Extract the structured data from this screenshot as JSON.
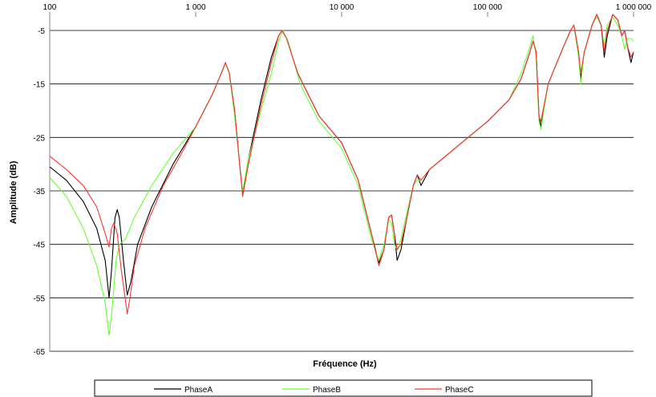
{
  "chart_data": {
    "type": "line",
    "xlabel": "Fréquence (Hz)",
    "ylabel": "Amplitude (dB)",
    "xscale": "log",
    "xlim": [
      100,
      1000000
    ],
    "ylim": [
      -65,
      -2
    ],
    "x_ticks": [
      100,
      1000,
      10000,
      100000,
      1000000
    ],
    "x_tick_labels": [
      "100",
      "1 000",
      "10 000",
      "100 000",
      "1 000 000"
    ],
    "y_ticks": [
      -5,
      -15,
      -25,
      -35,
      -45,
      -55,
      -65
    ],
    "y_tick_labels": [
      "-5",
      "-15",
      "-25",
      "-35",
      "-45",
      "-55",
      "-65"
    ],
    "grid": "horizontal",
    "legend_position": "bottom",
    "series": [
      {
        "name": "PhaseA",
        "color": "#000000",
        "points": [
          [
            100,
            -30.5
          ],
          [
            130,
            -33
          ],
          [
            170,
            -37
          ],
          [
            210,
            -42
          ],
          [
            240,
            -48
          ],
          [
            255,
            -55
          ],
          [
            265,
            -50
          ],
          [
            280,
            -40
          ],
          [
            290,
            -38.5
          ],
          [
            300,
            -40
          ],
          [
            320,
            -48
          ],
          [
            340,
            -54.5
          ],
          [
            360,
            -52
          ],
          [
            400,
            -45
          ],
          [
            500,
            -38
          ],
          [
            700,
            -30
          ],
          [
            1000,
            -23
          ],
          [
            1300,
            -17
          ],
          [
            1500,
            -13
          ],
          [
            1600,
            -11
          ],
          [
            1700,
            -13
          ],
          [
            1850,
            -20
          ],
          [
            2000,
            -30
          ],
          [
            2100,
            -35.5
          ],
          [
            2300,
            -29
          ],
          [
            2800,
            -18
          ],
          [
            3300,
            -10
          ],
          [
            3700,
            -6
          ],
          [
            3900,
            -5
          ],
          [
            4200,
            -6.5
          ],
          [
            5000,
            -13
          ],
          [
            7000,
            -21
          ],
          [
            10000,
            -26
          ],
          [
            13000,
            -33
          ],
          [
            16000,
            -43
          ],
          [
            18000,
            -48.5
          ],
          [
            19500,
            -46
          ],
          [
            21000,
            -40
          ],
          [
            22000,
            -39.5
          ],
          [
            23000,
            -43
          ],
          [
            24000,
            -48
          ],
          [
            25500,
            -46
          ],
          [
            28000,
            -40
          ],
          [
            31000,
            -34
          ],
          [
            33000,
            -32
          ],
          [
            35000,
            -34
          ],
          [
            40000,
            -31
          ],
          [
            60000,
            -27
          ],
          [
            100000,
            -22
          ],
          [
            140000,
            -18
          ],
          [
            170000,
            -14
          ],
          [
            195000,
            -9
          ],
          [
            205000,
            -7
          ],
          [
            215000,
            -9
          ],
          [
            225000,
            -21
          ],
          [
            232000,
            -23
          ],
          [
            260000,
            -15
          ],
          [
            320000,
            -9
          ],
          [
            370000,
            -5
          ],
          [
            390000,
            -4
          ],
          [
            420000,
            -9
          ],
          [
            435000,
            -14
          ],
          [
            460000,
            -9
          ],
          [
            520000,
            -4
          ],
          [
            560000,
            -2
          ],
          [
            600000,
            -4
          ],
          [
            630000,
            -10
          ],
          [
            660000,
            -6
          ],
          [
            720000,
            -2
          ],
          [
            780000,
            -3
          ],
          [
            830000,
            -6
          ],
          [
            870000,
            -5
          ],
          [
            910000,
            -8
          ],
          [
            960000,
            -11
          ],
          [
            1000000,
            -9
          ]
        ]
      },
      {
        "name": "PhaseB",
        "color": "#66ff33",
        "points": [
          [
            100,
            -32.5
          ],
          [
            130,
            -36
          ],
          [
            170,
            -42
          ],
          [
            210,
            -49
          ],
          [
            240,
            -56
          ],
          [
            255,
            -62
          ],
          [
            268,
            -57
          ],
          [
            285,
            -48
          ],
          [
            300,
            -45
          ],
          [
            330,
            -44
          ],
          [
            380,
            -40
          ],
          [
            500,
            -34
          ],
          [
            700,
            -28
          ],
          [
            1000,
            -23
          ],
          [
            1300,
            -17
          ],
          [
            1500,
            -13
          ],
          [
            1600,
            -11
          ],
          [
            1700,
            -13
          ],
          [
            1850,
            -21
          ],
          [
            2000,
            -30
          ],
          [
            2100,
            -35
          ],
          [
            2300,
            -29
          ],
          [
            2800,
            -20
          ],
          [
            3300,
            -13
          ],
          [
            3700,
            -7
          ],
          [
            3950,
            -5
          ],
          [
            4300,
            -7
          ],
          [
            5200,
            -15
          ],
          [
            7000,
            -22
          ],
          [
            10000,
            -27
          ],
          [
            13000,
            -34
          ],
          [
            16000,
            -44
          ],
          [
            18000,
            -48
          ],
          [
            19500,
            -45
          ],
          [
            21000,
            -40.5
          ],
          [
            22000,
            -41
          ],
          [
            23000,
            -45
          ],
          [
            24000,
            -46
          ],
          [
            25500,
            -44
          ],
          [
            28000,
            -39
          ],
          [
            31000,
            -34
          ],
          [
            33000,
            -33
          ],
          [
            35000,
            -33
          ],
          [
            40000,
            -31
          ],
          [
            60000,
            -27
          ],
          [
            100000,
            -22
          ],
          [
            140000,
            -18
          ],
          [
            170000,
            -13
          ],
          [
            195000,
            -8
          ],
          [
            205000,
            -6
          ],
          [
            215000,
            -10
          ],
          [
            225000,
            -22
          ],
          [
            232000,
            -23.5
          ],
          [
            260000,
            -15
          ],
          [
            320000,
            -9
          ],
          [
            370000,
            -5
          ],
          [
            390000,
            -4
          ],
          [
            420000,
            -10
          ],
          [
            435000,
            -15
          ],
          [
            460000,
            -9
          ],
          [
            520000,
            -4
          ],
          [
            560000,
            -2.5
          ],
          [
            600000,
            -4
          ],
          [
            630000,
            -8
          ],
          [
            660000,
            -4
          ],
          [
            720000,
            -2.5
          ],
          [
            780000,
            -4
          ],
          [
            830000,
            -6
          ],
          [
            870000,
            -8.5
          ],
          [
            910000,
            -6.5
          ],
          [
            960000,
            -6.5
          ],
          [
            1000000,
            -7
          ]
        ]
      },
      {
        "name": "PhaseC",
        "color": "#ff3333",
        "points": [
          [
            100,
            -28.5
          ],
          [
            130,
            -31
          ],
          [
            170,
            -34
          ],
          [
            210,
            -38
          ],
          [
            240,
            -43
          ],
          [
            255,
            -45.5
          ],
          [
            265,
            -42
          ],
          [
            275,
            -41
          ],
          [
            290,
            -43
          ],
          [
            310,
            -50
          ],
          [
            340,
            -58
          ],
          [
            355,
            -55
          ],
          [
            380,
            -49
          ],
          [
            450,
            -42
          ],
          [
            600,
            -34
          ],
          [
            800,
            -28
          ],
          [
            1000,
            -23
          ],
          [
            1300,
            -17
          ],
          [
            1500,
            -13
          ],
          [
            1600,
            -11
          ],
          [
            1700,
            -13
          ],
          [
            1850,
            -20
          ],
          [
            2000,
            -30
          ],
          [
            2100,
            -36
          ],
          [
            2300,
            -30
          ],
          [
            2800,
            -19
          ],
          [
            3300,
            -11
          ],
          [
            3700,
            -6
          ],
          [
            3900,
            -5
          ],
          [
            4200,
            -6.5
          ],
          [
            5000,
            -13
          ],
          [
            7000,
            -21
          ],
          [
            10000,
            -26
          ],
          [
            13000,
            -33
          ],
          [
            16000,
            -43
          ],
          [
            18000,
            -49
          ],
          [
            19500,
            -46
          ],
          [
            21000,
            -40
          ],
          [
            22000,
            -39.5
          ],
          [
            23000,
            -43
          ],
          [
            24000,
            -46
          ],
          [
            25500,
            -45
          ],
          [
            28000,
            -40
          ],
          [
            31000,
            -34
          ],
          [
            33000,
            -32
          ],
          [
            35000,
            -33
          ],
          [
            40000,
            -31
          ],
          [
            60000,
            -27
          ],
          [
            100000,
            -22
          ],
          [
            140000,
            -18
          ],
          [
            170000,
            -14
          ],
          [
            195000,
            -9
          ],
          [
            205000,
            -7
          ],
          [
            215000,
            -9
          ],
          [
            225000,
            -21
          ],
          [
            232000,
            -22
          ],
          [
            260000,
            -15
          ],
          [
            320000,
            -9
          ],
          [
            370000,
            -5
          ],
          [
            390000,
            -4
          ],
          [
            420000,
            -9
          ],
          [
            435000,
            -13
          ],
          [
            460000,
            -9
          ],
          [
            520000,
            -4
          ],
          [
            560000,
            -2
          ],
          [
            600000,
            -4
          ],
          [
            630000,
            -9
          ],
          [
            660000,
            -5
          ],
          [
            720000,
            -2
          ],
          [
            780000,
            -3
          ],
          [
            830000,
            -6
          ],
          [
            870000,
            -5
          ],
          [
            910000,
            -8
          ],
          [
            960000,
            -10
          ],
          [
            1000000,
            -9
          ]
        ]
      }
    ]
  }
}
